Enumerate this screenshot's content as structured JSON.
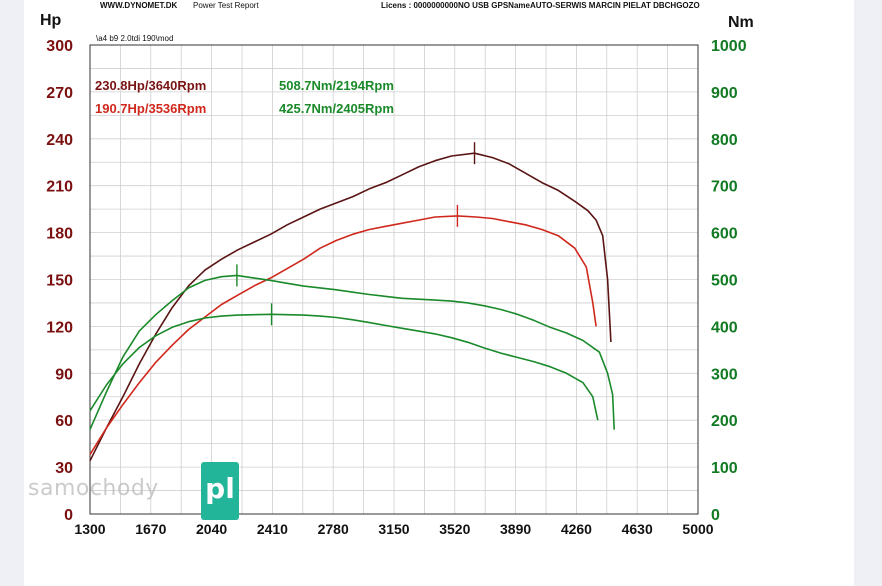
{
  "report": {
    "site": "WWW.DYNOMET.DK",
    "title": "Power Test Report",
    "license": "Licens :  0000000000NO USB GPSNameAUTO-SERWIS MARCIN PIELAT  DBCHGOZO",
    "file": "\\a4 b9 2.0tdi 190\\mod"
  },
  "watermark": {
    "text": "samochody",
    "badge": "pl"
  },
  "colors": {
    "grid": "#cfcfcf",
    "left_axis": "#7a1010",
    "right_axis": "#117a22",
    "power_mod": "#5a1414",
    "power_stock": "#d0281c",
    "torque": "#1a8a2a",
    "watermark_badge": "#22b59a"
  },
  "chart_data": {
    "type": "line",
    "x_unit": "Rpm",
    "xlim": [
      1300,
      5000
    ],
    "x_ticks": [
      1300,
      1670,
      2040,
      2410,
      2780,
      3150,
      3520,
      3890,
      4260,
      4630,
      5000
    ],
    "x_tick_labels": [
      "1300",
      "1670",
      "2040",
      "2410",
      "2780",
      "3150",
      "3520",
      "3890",
      "4260",
      "4630",
      "5000"
    ],
    "y_left": {
      "label": "Hp",
      "lim": [
        0,
        300
      ],
      "ticks": [
        "0",
        "30",
        "60",
        "90",
        "120",
        "150",
        "180",
        "210",
        "240",
        "270",
        "300"
      ]
    },
    "y_right": {
      "label": "Nm",
      "lim": [
        0,
        1000
      ],
      "ticks": [
        "0",
        "100",
        "200",
        "300",
        "400",
        "500",
        "600",
        "700",
        "800",
        "900",
        "1000"
      ]
    },
    "grid": true,
    "annotations": [
      {
        "text": "230.8Hp/3640Rpm",
        "color": "#7a1414"
      },
      {
        "text": "190.7Hp/3536Rpm",
        "color": "#d0281c"
      },
      {
        "text": "508.7Nm/2194Rpm",
        "color": "#1a8a2a"
      },
      {
        "text": "425.7Nm/2405Rpm",
        "color": "#1a8a2a"
      }
    ],
    "series": [
      {
        "axis": "left",
        "color": "#5a1414",
        "peak": [
          3640,
          230.8
        ],
        "points": [
          [
            1300,
            34
          ],
          [
            1400,
            55
          ],
          [
            1500,
            75
          ],
          [
            1600,
            96
          ],
          [
            1700,
            115
          ],
          [
            1800,
            132
          ],
          [
            1900,
            146
          ],
          [
            2000,
            156
          ],
          [
            2100,
            163
          ],
          [
            2200,
            169
          ],
          [
            2300,
            174
          ],
          [
            2400,
            179
          ],
          [
            2500,
            185
          ],
          [
            2600,
            190
          ],
          [
            2700,
            195
          ],
          [
            2800,
            199
          ],
          [
            2900,
            203
          ],
          [
            3000,
            208
          ],
          [
            3100,
            212
          ],
          [
            3200,
            217
          ],
          [
            3300,
            222
          ],
          [
            3400,
            226
          ],
          [
            3500,
            229
          ],
          [
            3640,
            230.8
          ],
          [
            3750,
            228
          ],
          [
            3850,
            224
          ],
          [
            3950,
            218
          ],
          [
            4050,
            212
          ],
          [
            4150,
            207
          ],
          [
            4250,
            200
          ],
          [
            4330,
            194
          ],
          [
            4380,
            188
          ],
          [
            4420,
            178
          ],
          [
            4450,
            150
          ],
          [
            4470,
            110
          ]
        ]
      },
      {
        "axis": "left",
        "color": "#d0281c",
        "peak": [
          3536,
          190.7
        ],
        "points": [
          [
            1300,
            38
          ],
          [
            1400,
            55
          ],
          [
            1500,
            70
          ],
          [
            1600,
            84
          ],
          [
            1700,
            97
          ],
          [
            1800,
            108
          ],
          [
            1900,
            118
          ],
          [
            2000,
            126
          ],
          [
            2100,
            134
          ],
          [
            2200,
            140
          ],
          [
            2300,
            146
          ],
          [
            2400,
            151
          ],
          [
            2500,
            157
          ],
          [
            2600,
            163
          ],
          [
            2700,
            170
          ],
          [
            2800,
            175
          ],
          [
            2900,
            179
          ],
          [
            3000,
            182
          ],
          [
            3100,
            184
          ],
          [
            3200,
            186
          ],
          [
            3300,
            188
          ],
          [
            3400,
            190
          ],
          [
            3536,
            190.7
          ],
          [
            3650,
            190
          ],
          [
            3750,
            189
          ],
          [
            3850,
            187
          ],
          [
            3950,
            185
          ],
          [
            4050,
            182
          ],
          [
            4150,
            178
          ],
          [
            4250,
            170
          ],
          [
            4320,
            158
          ],
          [
            4360,
            135
          ],
          [
            4380,
            120
          ]
        ]
      },
      {
        "axis": "right",
        "color": "#1a8a2a",
        "peak": [
          2194,
          508.7
        ],
        "points": [
          [
            1300,
            180
          ],
          [
            1400,
            260
          ],
          [
            1500,
            335
          ],
          [
            1600,
            390
          ],
          [
            1700,
            425
          ],
          [
            1800,
            455
          ],
          [
            1900,
            482
          ],
          [
            2000,
            498
          ],
          [
            2100,
            506
          ],
          [
            2194,
            508.7
          ],
          [
            2300,
            503
          ],
          [
            2400,
            498
          ],
          [
            2500,
            492
          ],
          [
            2600,
            486
          ],
          [
            2700,
            482
          ],
          [
            2800,
            478
          ],
          [
            2900,
            473
          ],
          [
            3000,
            468
          ],
          [
            3100,
            464
          ],
          [
            3200,
            460
          ],
          [
            3300,
            458
          ],
          [
            3400,
            456
          ],
          [
            3500,
            454
          ],
          [
            3600,
            450
          ],
          [
            3700,
            444
          ],
          [
            3800,
            436
          ],
          [
            3900,
            426
          ],
          [
            4000,
            413
          ],
          [
            4100,
            398
          ],
          [
            4200,
            386
          ],
          [
            4300,
            370
          ],
          [
            4400,
            345
          ],
          [
            4450,
            300
          ],
          [
            4480,
            255
          ],
          [
            4490,
            180
          ]
        ]
      },
      {
        "axis": "right",
        "color": "#1a8a2a",
        "peak": [
          2405,
          425.7
        ],
        "points": [
          [
            1300,
            220
          ],
          [
            1400,
            275
          ],
          [
            1500,
            320
          ],
          [
            1600,
            355
          ],
          [
            1700,
            380
          ],
          [
            1800,
            398
          ],
          [
            1900,
            410
          ],
          [
            2000,
            418
          ],
          [
            2100,
            422
          ],
          [
            2200,
            424
          ],
          [
            2300,
            425
          ],
          [
            2405,
            425.7
          ],
          [
            2500,
            425
          ],
          [
            2600,
            424
          ],
          [
            2700,
            422
          ],
          [
            2800,
            419
          ],
          [
            2900,
            414
          ],
          [
            3000,
            408
          ],
          [
            3100,
            402
          ],
          [
            3200,
            396
          ],
          [
            3300,
            390
          ],
          [
            3400,
            384
          ],
          [
            3500,
            376
          ],
          [
            3600,
            366
          ],
          [
            3700,
            354
          ],
          [
            3800,
            343
          ],
          [
            3900,
            334
          ],
          [
            4000,
            325
          ],
          [
            4100,
            314
          ],
          [
            4200,
            300
          ],
          [
            4300,
            280
          ],
          [
            4360,
            250
          ],
          [
            4390,
            200
          ]
        ]
      }
    ]
  }
}
